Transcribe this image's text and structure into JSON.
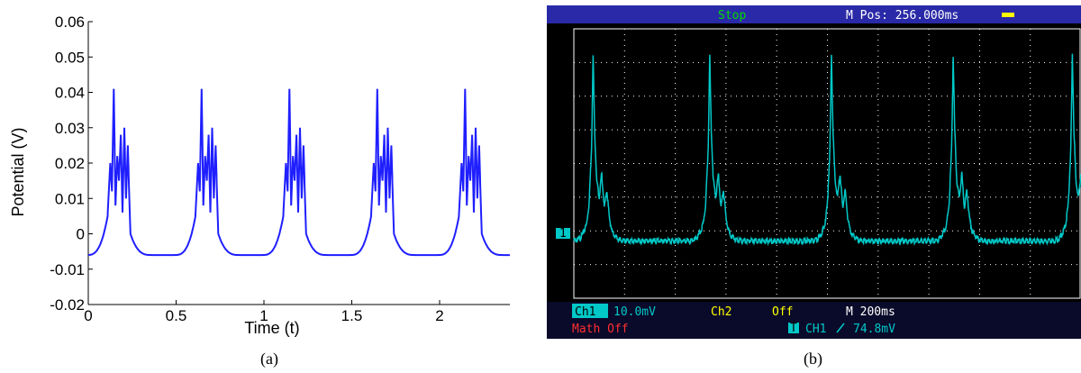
{
  "chart_data": [
    {
      "type": "line",
      "caption": "(a)",
      "xlabel": "Time (t)",
      "ylabel": "Potential (V)",
      "xlim": [
        0,
        2.4
      ],
      "ylim": [
        -0.02,
        0.06
      ],
      "xticks": [
        0,
        0.5,
        1,
        1.5,
        2
      ],
      "xtick_labels": [
        "0",
        "0.5",
        "1",
        "1.5",
        "2"
      ],
      "yticks": [
        -0.02,
        -0.01,
        0,
        0.01,
        0.02,
        0.03,
        0.04,
        0.05,
        0.06
      ],
      "ytick_labels": [
        "-0.02",
        "-0.01",
        "0",
        "0.01",
        "0.02",
        "0.03",
        "0.04",
        "0.05",
        "0.06"
      ],
      "grid": false,
      "series": [
        {
          "color": "#1f1fff",
          "baseline": -0.006,
          "burst_starts": [
            0.11,
            0.61,
            1.11,
            1.61,
            2.11
          ],
          "burst_profile": {
            "dt": [
              0.0,
              0.015,
              0.025,
              0.035,
              0.045,
              0.055,
              0.065,
              0.075,
              0.085,
              0.095,
              0.105,
              0.115,
              0.125,
              0.13
            ],
            "v": [
              0.005,
              0.02,
              0.012,
              0.041,
              0.008,
              0.022,
              0.015,
              0.028,
              0.006,
              0.03,
              0.01,
              0.025,
              0.008,
              0.0
            ]
          }
        }
      ]
    },
    {
      "type": "line",
      "caption": "(b)",
      "header": {
        "status": "Stop",
        "mpos": "M Pos: 256.000ms"
      },
      "footer": {
        "ch1_label": "Ch1",
        "ch1_scale": "10.0mV",
        "ch2_label": "Ch2",
        "ch2_state": "Off",
        "timebase": "M 200ms",
        "math": "Math Off",
        "trigger_src": "CH1",
        "trigger_level": "74.8mV",
        "trigger_icon": "T"
      },
      "channel_marker": "1",
      "colors": {
        "trace": "#00c8c8",
        "status": "#00dd00",
        "header": "#ffffff",
        "math": "#ff3030",
        "ch2": "#ffff00",
        "grid": "#ffffff"
      },
      "xlim": [
        0,
        10
      ],
      "ylim": [
        -4,
        4
      ],
      "series": [
        {
          "color": "#00c8c8",
          "baseline": -2.3,
          "burst_starts": [
            0.25,
            2.55,
            4.95,
            7.35,
            9.7
          ],
          "burst_profile": {
            "dt": [
              0.0,
              0.05,
              0.1,
              0.13,
              0.16,
              0.2,
              0.25,
              0.3,
              0.35,
              0.4,
              0.45,
              0.5
            ],
            "v": [
              -1.8,
              -1.2,
              0.5,
              3.2,
              1.0,
              -0.5,
              -1.0,
              -0.3,
              -1.3,
              -0.8,
              -1.6,
              -2.0
            ]
          }
        }
      ]
    }
  ]
}
